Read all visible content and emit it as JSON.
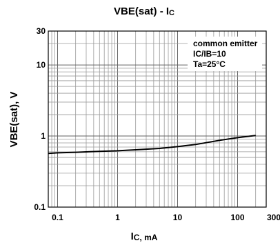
{
  "chart_data": {
    "type": "line",
    "title_main": "VBE(sat) - I",
    "title_sub": "C",
    "ylabel": "VBE(sat), V",
    "xlabel_main": "I",
    "xlabel_sub": "C, mA",
    "xscale": "log",
    "yscale": "log",
    "xlim": [
      0.07,
      300
    ],
    "ylim": [
      0.1,
      30
    ],
    "grid": true,
    "x_ticks": [
      {
        "value": 0.1,
        "label": "0.1"
      },
      {
        "value": 1,
        "label": "1"
      },
      {
        "value": 10,
        "label": "10"
      },
      {
        "value": 100,
        "label": "100"
      },
      {
        "value": 300,
        "label": "300"
      }
    ],
    "y_ticks": [
      {
        "value": 0.1,
        "label": "0.1"
      },
      {
        "value": 1,
        "label": "1"
      },
      {
        "value": 10,
        "label": "10"
      },
      {
        "value": 30,
        "label": "30"
      }
    ],
    "annotations": [
      "common emitter",
      "IC/IB=10",
      "Ta=25°C"
    ],
    "series": [
      {
        "x": [
          0.07,
          0.1,
          0.2,
          0.5,
          1,
          2,
          5,
          10,
          20,
          50,
          100,
          200
        ],
        "y": [
          0.57,
          0.58,
          0.59,
          0.61,
          0.62,
          0.64,
          0.67,
          0.71,
          0.76,
          0.87,
          0.95,
          1.02
        ]
      }
    ]
  }
}
